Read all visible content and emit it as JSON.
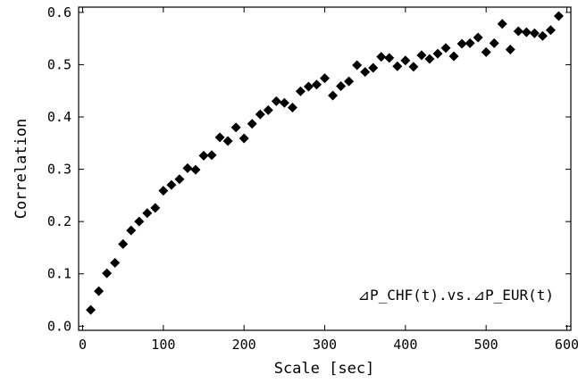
{
  "chart_data": {
    "type": "scatter",
    "xlabel": "Scale [sec]",
    "ylabel": "Correlation",
    "annotation": "⊿P_CHF(t).vs.⊿P_EUR(t)",
    "xlim": [
      -5,
      605
    ],
    "ylim": [
      -0.008,
      0.61
    ],
    "xticks": [
      0,
      100,
      200,
      300,
      400,
      500,
      600
    ],
    "yticks": [
      0.0,
      0.1,
      0.2,
      0.3,
      0.4,
      0.5,
      0.6
    ],
    "xtick_labels": [
      "0",
      "100",
      "200",
      "300",
      "400",
      "500",
      "600"
    ],
    "ytick_labels": [
      "0.0",
      "0.1",
      "0.2",
      "0.3",
      "0.4",
      "0.5",
      "0.6"
    ],
    "grid": false,
    "marker_color": "#000000",
    "marker": "diamond",
    "x": [
      10,
      20,
      30,
      40,
      50,
      60,
      70,
      80,
      90,
      100,
      110,
      120,
      130,
      140,
      150,
      160,
      170,
      180,
      190,
      200,
      210,
      220,
      230,
      240,
      250,
      260,
      270,
      280,
      290,
      300,
      310,
      320,
      330,
      340,
      350,
      360,
      370,
      380,
      390,
      400,
      410,
      420,
      430,
      440,
      450,
      460,
      470,
      480,
      490,
      500,
      510,
      520,
      530,
      540,
      550,
      560,
      570,
      580,
      590
    ],
    "y": [
      0.031,
      0.067,
      0.101,
      0.121,
      0.157,
      0.183,
      0.2,
      0.216,
      0.226,
      0.259,
      0.27,
      0.281,
      0.302,
      0.299,
      0.326,
      0.327,
      0.361,
      0.354,
      0.38,
      0.359,
      0.387,
      0.405,
      0.413,
      0.43,
      0.427,
      0.418,
      0.449,
      0.458,
      0.462,
      0.474,
      0.441,
      0.459,
      0.468,
      0.499,
      0.486,
      0.494,
      0.515,
      0.513,
      0.497,
      0.508,
      0.496,
      0.518,
      0.511,
      0.521,
      0.532,
      0.516,
      0.54,
      0.541,
      0.552,
      0.524,
      0.541,
      0.578,
      0.529,
      0.564,
      0.562,
      0.56,
      0.555,
      0.566,
      0.593
    ]
  }
}
